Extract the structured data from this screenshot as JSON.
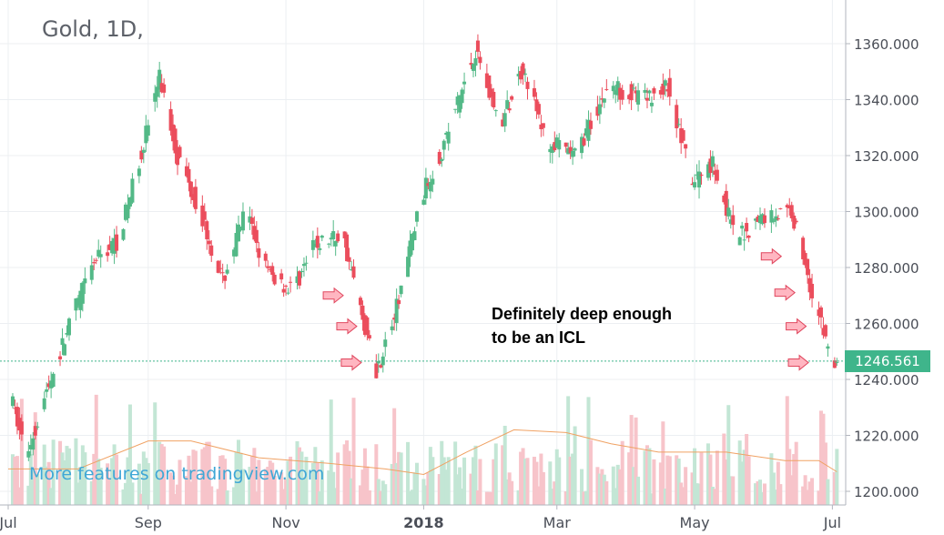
{
  "chart_data": {
    "type": "candlestick",
    "title": "Gold, 1D,",
    "ylim": [
      1195,
      1370
    ],
    "yticks": [
      "1360.000",
      "1340.000",
      "1320.000",
      "1300.000",
      "1280.000",
      "1260.000",
      "1240.000",
      "1220.000",
      "1200.000"
    ],
    "ytick_values": [
      1360,
      1340,
      1320,
      1300,
      1280,
      1260,
      1240,
      1220,
      1200
    ],
    "xticks": [
      "Jul",
      "Sep",
      "Nov",
      "2018",
      "Mar",
      "May",
      "Jul"
    ],
    "xtick_dates": [
      "2017-07-01",
      "2017-09-01",
      "2017-11-01",
      "2018-01-01",
      "2018-03-01",
      "2018-05-01",
      "2018-07-01"
    ],
    "x_range": [
      "2017-07-01",
      "2018-08-15"
    ],
    "last_price": "1246.561",
    "last_price_value": 1246.561,
    "close_path": [
      [
        "2017-07-01",
        1240
      ],
      [
        "2017-07-10",
        1213
      ],
      [
        "2017-07-20",
        1238
      ],
      [
        "2017-08-01",
        1266
      ],
      [
        "2017-08-10",
        1283
      ],
      [
        "2017-08-20",
        1290
      ],
      [
        "2017-08-28",
        1315
      ],
      [
        "2017-09-07",
        1348
      ],
      [
        "2017-09-15",
        1320
      ],
      [
        "2017-09-25",
        1300
      ],
      [
        "2017-10-05",
        1275
      ],
      [
        "2017-10-15",
        1300
      ],
      [
        "2017-10-25",
        1278
      ],
      [
        "2017-11-05",
        1272
      ],
      [
        "2017-11-15",
        1288
      ],
      [
        "2017-11-27",
        1292
      ],
      [
        "2017-12-05",
        1265
      ],
      [
        "2017-12-12",
        1243
      ],
      [
        "2017-12-20",
        1262
      ],
      [
        "2018-01-01",
        1305
      ],
      [
        "2018-01-10",
        1322
      ],
      [
        "2018-01-25",
        1358
      ],
      [
        "2018-02-05",
        1330
      ],
      [
        "2018-02-15",
        1352
      ],
      [
        "2018-02-25",
        1325
      ],
      [
        "2018-03-10",
        1320
      ],
      [
        "2018-03-25",
        1345
      ],
      [
        "2018-04-10",
        1340
      ],
      [
        "2018-04-20",
        1345
      ],
      [
        "2018-05-01",
        1310
      ],
      [
        "2018-05-10",
        1318
      ],
      [
        "2018-05-20",
        1290
      ],
      [
        "2018-06-01",
        1298
      ],
      [
        "2018-06-14",
        1300
      ],
      [
        "2018-06-25",
        1265
      ],
      [
        "2018-07-03",
        1244
      ]
    ],
    "ma_path": [
      [
        "2017-07-01",
        1208
      ],
      [
        "2017-08-01",
        1208
      ],
      [
        "2017-09-01",
        1218
      ],
      [
        "2017-09-20",
        1218
      ],
      [
        "2017-10-20",
        1212
      ],
      [
        "2017-11-20",
        1210
      ],
      [
        "2017-12-15",
        1208
      ],
      [
        "2018-01-01",
        1206
      ],
      [
        "2018-01-20",
        1214
      ],
      [
        "2018-02-10",
        1222
      ],
      [
        "2018-03-05",
        1221
      ],
      [
        "2018-03-25",
        1217
      ],
      [
        "2018-04-15",
        1214
      ],
      [
        "2018-05-15",
        1214
      ],
      [
        "2018-06-10",
        1211
      ],
      [
        "2018-06-25",
        1211
      ],
      [
        "2018-07-03",
        1207
      ]
    ]
  },
  "annotation": {
    "line1": "Definitely deep enough",
    "line2": "to be an ICL",
    "arrows": [
      [
        "2017-11-28",
        1270
      ],
      [
        "2017-12-04",
        1259
      ],
      [
        "2017-12-06",
        1246
      ],
      [
        "2018-06-10",
        1284
      ],
      [
        "2018-06-16",
        1271
      ],
      [
        "2018-06-21",
        1259
      ],
      [
        "2018-06-22",
        1246
      ]
    ]
  },
  "watermark": "More features on tradingview.com",
  "colors": {
    "up": "#53b987",
    "down": "#eb4d5c",
    "up_volume": "#c3e6d5",
    "down_volume": "#f7c4ca",
    "ma": "#f0a264",
    "grid": "#eceff2",
    "axis": "#b2b5be",
    "arrow_fill": "#ffb6c1",
    "arrow_stroke": "#e0475e",
    "price_line": "#3fb58b"
  }
}
